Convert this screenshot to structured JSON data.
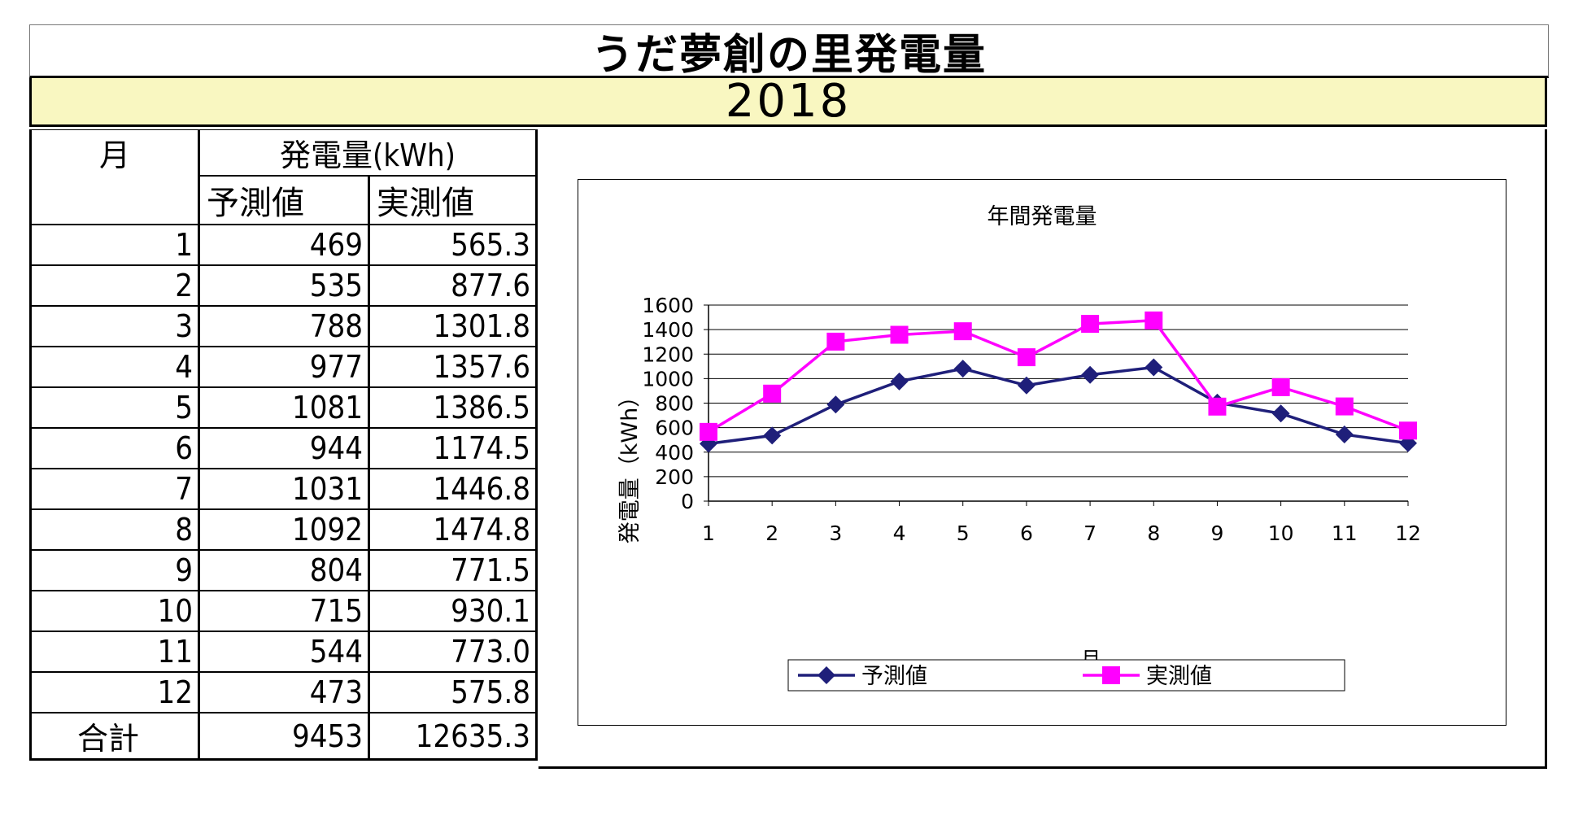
{
  "title": "うだ夢創の里発電量",
  "year": "2018",
  "table": {
    "month_header": "月",
    "group_header": "発電量(kWh)",
    "col_predicted": "予測値",
    "col_actual": "実測値",
    "rows": [
      {
        "month": "1",
        "predicted": "469",
        "actual": "565.3"
      },
      {
        "month": "2",
        "predicted": "535",
        "actual": "877.6"
      },
      {
        "month": "3",
        "predicted": "788",
        "actual": "1301.8"
      },
      {
        "month": "4",
        "predicted": "977",
        "actual": "1357.6"
      },
      {
        "month": "5",
        "predicted": "1081",
        "actual": "1386.5"
      },
      {
        "month": "6",
        "predicted": "944",
        "actual": "1174.5"
      },
      {
        "month": "7",
        "predicted": "1031",
        "actual": "1446.8"
      },
      {
        "month": "8",
        "predicted": "1092",
        "actual": "1474.8"
      },
      {
        "month": "9",
        "predicted": "804",
        "actual": "771.5"
      },
      {
        "month": "10",
        "predicted": "715",
        "actual": "930.1"
      },
      {
        "month": "11",
        "predicted": "544",
        "actual": "773.0"
      },
      {
        "month": "12",
        "predicted": "473",
        "actual": "575.8"
      }
    ],
    "total_label": "合計",
    "total_predicted": "9453",
    "total_actual": "12635.3"
  },
  "chart_data": {
    "type": "line",
    "title": "年間発電量",
    "xlabel": "月",
    "ylabel": "発電量（kWh）",
    "categories": [
      "1",
      "2",
      "3",
      "4",
      "5",
      "6",
      "7",
      "8",
      "9",
      "10",
      "11",
      "12"
    ],
    "ylim": [
      0,
      1600
    ],
    "yticks": [
      0,
      200,
      400,
      600,
      800,
      1000,
      1200,
      1400,
      1600
    ],
    "grid": true,
    "legend_position": "bottom",
    "series": [
      {
        "name": "予測値",
        "color": "#1f1f7a",
        "marker": "diamond",
        "values": [
          469,
          535,
          788,
          977,
          1081,
          944,
          1031,
          1092,
          804,
          715,
          544,
          473
        ]
      },
      {
        "name": "実測値",
        "color": "#ff00ff",
        "marker": "square",
        "values": [
          565.3,
          877.6,
          1301.8,
          1357.6,
          1386.5,
          1174.5,
          1446.8,
          1474.8,
          771.5,
          930.1,
          773.0,
          575.8
        ]
      }
    ]
  }
}
